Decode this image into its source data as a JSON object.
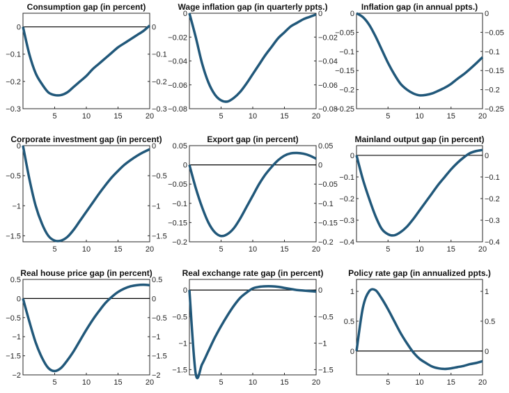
{
  "chart_data": [
    {
      "type": "line",
      "title": "Consumption gap (in percent)",
      "x": [
        0,
        1,
        2,
        3,
        4,
        5,
        6,
        7,
        8,
        9,
        10,
        11,
        12,
        13,
        14,
        15,
        16,
        17,
        18,
        19,
        20
      ],
      "values": [
        0,
        -0.1,
        -0.17,
        -0.21,
        -0.24,
        -0.25,
        -0.25,
        -0.24,
        -0.22,
        -0.2,
        -0.18,
        -0.155,
        -0.135,
        -0.115,
        -0.095,
        -0.075,
        -0.06,
        -0.045,
        -0.03,
        -0.015,
        0.005
      ],
      "xlim": [
        0,
        20
      ],
      "ylim": [
        -0.3,
        0.05
      ],
      "xticks": [
        5,
        10,
        15,
        20
      ],
      "yticks": [
        0,
        -0.1,
        -0.2,
        -0.3
      ],
      "ytick_labels": [
        "0",
        "−0.1",
        "−0.2",
        "−0.3"
      ],
      "zero_line": true
    },
    {
      "type": "line",
      "title": "Wage inflation gap (in quarterly ppts.)",
      "x": [
        0,
        1,
        2,
        3,
        4,
        5,
        6,
        7,
        8,
        9,
        10,
        11,
        12,
        13,
        14,
        15,
        16,
        17,
        18,
        19,
        20
      ],
      "values": [
        0,
        -0.02,
        -0.042,
        -0.058,
        -0.068,
        -0.073,
        -0.074,
        -0.071,
        -0.066,
        -0.059,
        -0.051,
        -0.043,
        -0.035,
        -0.028,
        -0.021,
        -0.016,
        -0.011,
        -0.008,
        -0.005,
        -0.003,
        -0.001
      ],
      "xlim": [
        0,
        20
      ],
      "ylim": [
        -0.08,
        0
      ],
      "xticks": [
        5,
        10,
        15,
        20
      ],
      "yticks": [
        0,
        -0.02,
        -0.04,
        -0.06,
        -0.08
      ],
      "ytick_labels": [
        "0",
        "−0.02",
        "−0.04",
        "−0.06",
        "−0.08"
      ],
      "zero_line": false
    },
    {
      "type": "line",
      "title": "Inflation gap (in annual ppts.)",
      "x": [
        0,
        1,
        2,
        3,
        4,
        5,
        6,
        7,
        8,
        9,
        10,
        11,
        12,
        13,
        14,
        15,
        16,
        17,
        18,
        19,
        20
      ],
      "values": [
        0,
        -0.01,
        -0.03,
        -0.06,
        -0.095,
        -0.13,
        -0.16,
        -0.185,
        -0.2,
        -0.21,
        -0.215,
        -0.214,
        -0.21,
        -0.203,
        -0.195,
        -0.185,
        -0.172,
        -0.16,
        -0.146,
        -0.131,
        -0.115
      ],
      "xlim": [
        0,
        20
      ],
      "ylim": [
        -0.25,
        0
      ],
      "xticks": [
        5,
        10,
        15,
        20
      ],
      "yticks": [
        0,
        -0.05,
        -0.1,
        -0.15,
        -0.2,
        -0.25
      ],
      "ytick_labels": [
        "0",
        "−0.05",
        "−0.1",
        "−0.15",
        "−0.2",
        "−0.25"
      ],
      "zero_line": false
    },
    {
      "type": "line",
      "title": "Corporate investment gap (in percent)",
      "x": [
        0,
        1,
        2,
        3,
        4,
        5,
        6,
        7,
        8,
        9,
        10,
        11,
        12,
        13,
        14,
        15,
        16,
        17,
        18,
        19,
        20
      ],
      "values": [
        0,
        -0.55,
        -1.0,
        -1.3,
        -1.5,
        -1.58,
        -1.58,
        -1.52,
        -1.4,
        -1.25,
        -1.1,
        -0.95,
        -0.8,
        -0.66,
        -0.53,
        -0.42,
        -0.32,
        -0.24,
        -0.17,
        -0.11,
        -0.06
      ],
      "xlim": [
        0,
        20
      ],
      "ylim": [
        -1.6,
        0
      ],
      "xticks": [
        5,
        10,
        15,
        20
      ],
      "yticks": [
        0,
        -0.5,
        -1,
        -1.5
      ],
      "ytick_labels": [
        "0",
        "−0.5",
        "−1",
        "−1.5"
      ],
      "zero_line": false
    },
    {
      "type": "line",
      "title": "Export gap (in percent)",
      "x": [
        0,
        1,
        2,
        3,
        4,
        5,
        6,
        7,
        8,
        9,
        10,
        11,
        12,
        13,
        14,
        15,
        16,
        17,
        18,
        19,
        20
      ],
      "values": [
        0,
        -0.06,
        -0.11,
        -0.15,
        -0.175,
        -0.185,
        -0.18,
        -0.165,
        -0.14,
        -0.11,
        -0.08,
        -0.05,
        -0.025,
        -0.005,
        0.012,
        0.024,
        0.03,
        0.031,
        0.029,
        0.024,
        0.016
      ],
      "xlim": [
        0,
        20
      ],
      "ylim": [
        -0.2,
        0.05
      ],
      "xticks": [
        5,
        10,
        15,
        20
      ],
      "yticks": [
        0.05,
        0,
        -0.05,
        -0.1,
        -0.15,
        -0.2
      ],
      "ytick_labels": [
        "0.05",
        "0",
        "−0.05",
        "−0.1",
        "−0.15",
        "−0.2"
      ],
      "zero_line": true
    },
    {
      "type": "line",
      "title": "Mainland output gap (in percent)",
      "x": [
        0,
        1,
        2,
        3,
        4,
        5,
        6,
        7,
        8,
        9,
        10,
        11,
        12,
        13,
        14,
        15,
        16,
        17,
        18,
        19,
        20
      ],
      "values": [
        0,
        -0.11,
        -0.2,
        -0.28,
        -0.34,
        -0.365,
        -0.37,
        -0.355,
        -0.33,
        -0.295,
        -0.255,
        -0.215,
        -0.175,
        -0.135,
        -0.1,
        -0.065,
        -0.035,
        -0.01,
        0.01,
        0.02,
        0.025
      ],
      "xlim": [
        0,
        20
      ],
      "ylim": [
        -0.4,
        0.045
      ],
      "xticks": [
        5,
        10,
        15,
        20
      ],
      "yticks": [
        0,
        -0.1,
        -0.2,
        -0.3,
        -0.4
      ],
      "ytick_labels": [
        "0",
        "−0.1",
        "−0.2",
        "−0.3",
        "−0.4"
      ],
      "zero_line": true
    },
    {
      "type": "line",
      "title": "Real house price gap (in percent)",
      "x": [
        0,
        1,
        2,
        3,
        4,
        5,
        6,
        7,
        8,
        9,
        10,
        11,
        12,
        13,
        14,
        15,
        16,
        17,
        18,
        19,
        20
      ],
      "values": [
        0,
        -0.6,
        -1.15,
        -1.55,
        -1.82,
        -1.9,
        -1.82,
        -1.62,
        -1.38,
        -1.1,
        -0.82,
        -0.56,
        -0.33,
        -0.12,
        0.04,
        0.17,
        0.26,
        0.32,
        0.35,
        0.36,
        0.35
      ],
      "xlim": [
        0,
        20
      ],
      "ylim": [
        -2,
        0.5
      ],
      "xticks": [
        5,
        10,
        15,
        20
      ],
      "yticks": [
        0.5,
        0,
        -0.5,
        -1,
        -1.5,
        -2
      ],
      "ytick_labels": [
        "0.5",
        "0",
        "−0.5",
        "−1",
        "−1.5",
        "−2"
      ],
      "zero_line": true
    },
    {
      "type": "line",
      "title": "Real exchange rate gap (in percent)",
      "x": [
        0,
        1,
        2,
        3,
        4,
        5,
        6,
        7,
        8,
        9,
        10,
        11,
        12,
        13,
        14,
        15,
        16,
        17,
        18,
        19,
        20
      ],
      "values": [
        0,
        -1.58,
        -1.4,
        -1.15,
        -0.9,
        -0.68,
        -0.48,
        -0.3,
        -0.15,
        -0.05,
        0.03,
        0.06,
        0.07,
        0.07,
        0.06,
        0.04,
        0.02,
        0.0,
        -0.01,
        -0.02,
        -0.03
      ],
      "xlim": [
        0,
        20
      ],
      "ylim": [
        -1.6,
        0.2
      ],
      "xticks": [
        5,
        10,
        15,
        20
      ],
      "yticks": [
        0,
        -0.5,
        -1,
        -1.5
      ],
      "ytick_labels": [
        "0",
        "−0.5",
        "−1",
        "−1.5"
      ],
      "zero_line": true
    },
    {
      "type": "line",
      "title": "Policy rate gap (in annualized ppts.)",
      "x": [
        0,
        1,
        2,
        3,
        4,
        5,
        6,
        7,
        8,
        9,
        10,
        11,
        12,
        13,
        14,
        15,
        16,
        17,
        18,
        19,
        20
      ],
      "values": [
        0,
        0.72,
        1.0,
        1.02,
        0.88,
        0.7,
        0.5,
        0.3,
        0.13,
        -0.02,
        -0.13,
        -0.2,
        -0.26,
        -0.29,
        -0.3,
        -0.29,
        -0.27,
        -0.25,
        -0.22,
        -0.2,
        -0.17
      ],
      "xlim": [
        0,
        20
      ],
      "ylim": [
        -0.4,
        1.2
      ],
      "xticks": [
        5,
        10,
        15,
        20
      ],
      "yticks": [
        1,
        0.5,
        0
      ],
      "ytick_labels": [
        "1",
        "0.5",
        "0"
      ],
      "zero_line": true
    }
  ],
  "colors": {
    "series": "#21587a",
    "zero_line": "#000000",
    "axes": "#262626"
  }
}
